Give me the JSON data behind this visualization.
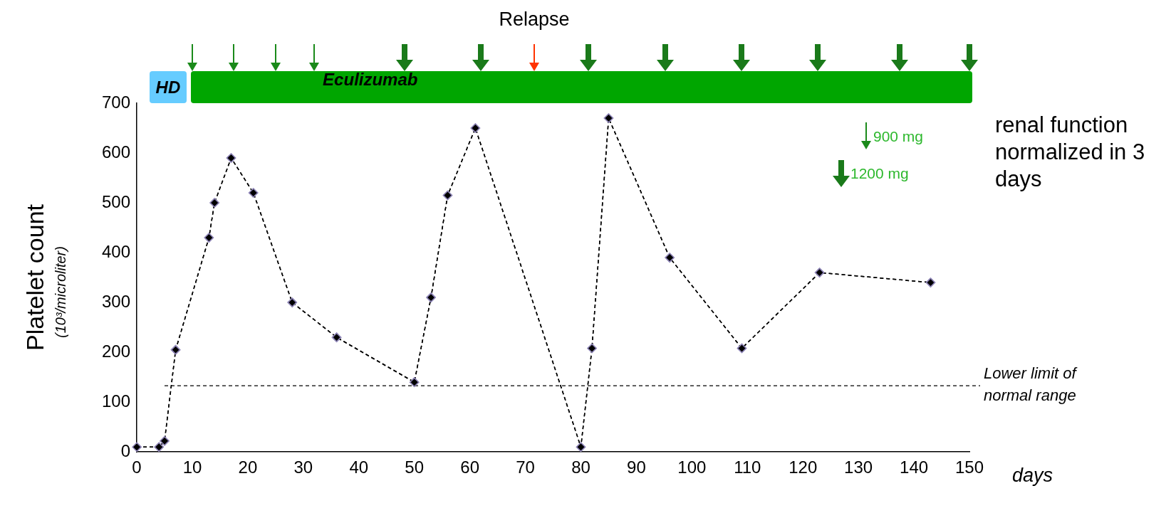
{
  "chart_data": {
    "type": "line",
    "xlabel": "days",
    "ylabel": "Platelet count",
    "x": [
      0,
      4,
      5,
      7,
      13,
      14,
      17,
      21,
      28,
      36,
      50,
      53,
      56,
      61,
      80,
      82,
      85,
      96,
      109,
      123,
      143
    ],
    "series": [
      {
        "color": "#000000",
        "values": [
          10,
          10,
          22,
          205,
          430,
          500,
          590,
          520,
          300,
          230,
          140,
          310,
          515,
          650,
          10,
          208,
          670,
          390,
          208,
          360,
          340
        ]
      }
    ],
    "xlim": [
      0,
      150
    ],
    "xticks": [
      0,
      10,
      20,
      30,
      40,
      50,
      60,
      70,
      80,
      90,
      100,
      110,
      120,
      130,
      140,
      150
    ],
    "ylim": [
      0,
      700
    ],
    "yticks": [
      0,
      100,
      200,
      300,
      400,
      500,
      600,
      700
    ],
    "grid": false,
    "legend": false,
    "marker": "diamond",
    "line_style": "dashed",
    "ref_lines": [
      {
        "axis": "y",
        "value": 133,
        "label": "Lower limit  of normal range",
        "color": "#000000",
        "line_style": "dashed"
      }
    ],
    "annotations": [
      "Relapse",
      "900 mg",
      "1200 mg",
      "renal function normalized in 3 days",
      "(10³/microliter)",
      "HD",
      "Eculizumab"
    ]
  }
}
